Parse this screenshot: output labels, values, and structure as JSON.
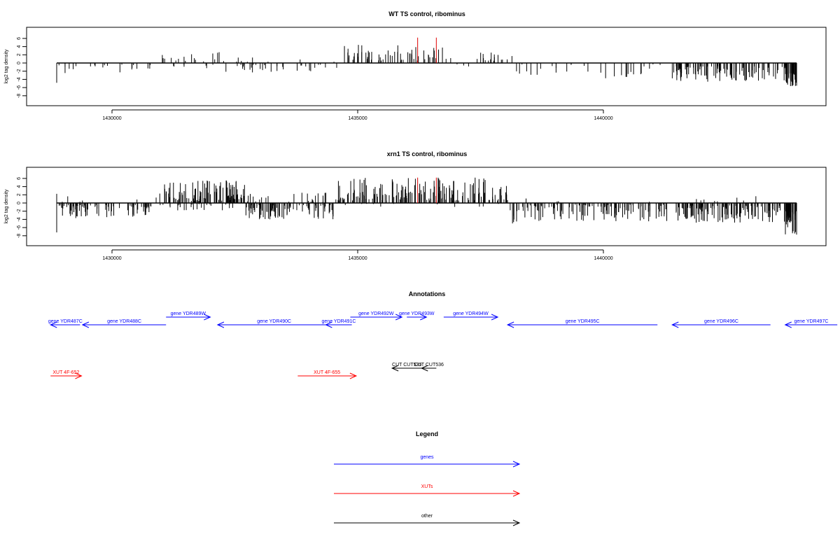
{
  "colors": {
    "axis": "#000000",
    "signal": "#000000",
    "highlight": "#e00000",
    "genes": "#0000ff",
    "xuts": "#ff0000",
    "other": "#000000"
  },
  "chart_data": [
    {
      "type": "bar",
      "title": "WT TS control, ribominus",
      "ylabel": "log2 tag density",
      "xlim": [
        1428100,
        1444500
      ],
      "ylim": [
        -8.3,
        6.7
      ],
      "xticks": [
        1430000,
        1435000,
        1440000
      ],
      "xtick_labels": [
        "1430000",
        "1435000",
        "1440000"
      ],
      "yticks": [
        6,
        4,
        2,
        0,
        -2,
        -4,
        -6,
        -8
      ],
      "ytick_labels": [
        "6",
        "4",
        "2",
        "0",
        "-2",
        "-4",
        "-6",
        "-8"
      ],
      "highlight_positions": [
        1436220,
        1436600
      ],
      "highlight_height": 6.2,
      "regions": [
        {
          "start": 1428750,
          "end": 1428850,
          "side": "neg",
          "min": 1.0,
          "max": 6.0,
          "n": 5,
          "seed": 11
        },
        {
          "start": 1428900,
          "end": 1429500,
          "side": "neg",
          "min": 0.5,
          "max": 2.6,
          "n": 6,
          "seed": 12
        },
        {
          "start": 1429500,
          "end": 1430800,
          "side": "neg",
          "min": 0.4,
          "max": 2.8,
          "n": 16,
          "seed": 13
        },
        {
          "start": 1431000,
          "end": 1431100,
          "side": "pos",
          "min": 1.0,
          "max": 3.5,
          "n": 3,
          "seed": 14
        },
        {
          "start": 1431200,
          "end": 1432300,
          "side": "pos",
          "min": 0.4,
          "max": 2.7,
          "n": 14,
          "seed": 15
        },
        {
          "start": 1431200,
          "end": 1432300,
          "side": "neg",
          "min": 0.3,
          "max": 1.3,
          "n": 8,
          "seed": 16
        },
        {
          "start": 1432300,
          "end": 1434600,
          "side": "neg",
          "min": 0.4,
          "max": 3.0,
          "n": 34,
          "seed": 17
        },
        {
          "start": 1432300,
          "end": 1434600,
          "side": "pos",
          "min": 0.3,
          "max": 1.5,
          "n": 8,
          "seed": 18
        },
        {
          "start": 1434700,
          "end": 1436900,
          "side": "pos",
          "min": 0.6,
          "max": 4.5,
          "n": 60,
          "seed": 19
        },
        {
          "start": 1436900,
          "end": 1437400,
          "side": "neg",
          "min": 0.3,
          "max": 1.6,
          "n": 3,
          "seed": 20
        },
        {
          "start": 1437400,
          "end": 1438200,
          "side": "pos",
          "min": 0.5,
          "max": 3.0,
          "n": 16,
          "seed": 21
        },
        {
          "start": 1438200,
          "end": 1441300,
          "side": "neg",
          "min": 0.3,
          "max": 3.8,
          "n": 30,
          "seed": 22
        },
        {
          "start": 1441400,
          "end": 1443700,
          "side": "neg",
          "min": 0.8,
          "max": 4.6,
          "n": 110,
          "seed": 23
        },
        {
          "start": 1443700,
          "end": 1443990,
          "side": "neg",
          "min": 2.5,
          "max": 5.8,
          "n": 40,
          "seed": 24
        }
      ]
    },
    {
      "type": "bar",
      "title": "xrn1 TS control, ribominus",
      "ylabel": "log2 tag density",
      "xlim": [
        1428100,
        1444500
      ],
      "ylim": [
        -8.3,
        6.7
      ],
      "xticks": [
        1430000,
        1435000,
        1440000
      ],
      "xtick_labels": [
        "1430000",
        "1435000",
        "1440000"
      ],
      "yticks": [
        6,
        4,
        2,
        0,
        -2,
        -4,
        -6,
        -8
      ],
      "ytick_labels": [
        "6",
        "4",
        "2",
        "0",
        "-2",
        "-4",
        "-6",
        "-8"
      ],
      "highlight_positions": [
        1436220,
        1436600
      ],
      "highlight_height": 6.2,
      "regions": [
        {
          "start": 1428750,
          "end": 1428850,
          "side": "neg",
          "min": 1.5,
          "max": 7.5,
          "n": 6,
          "seed": 31
        },
        {
          "start": 1428750,
          "end": 1428900,
          "side": "pos",
          "min": 1.0,
          "max": 2.6,
          "n": 3,
          "seed": 32
        },
        {
          "start": 1428900,
          "end": 1430900,
          "side": "neg",
          "min": 0.5,
          "max": 3.7,
          "n": 80,
          "seed": 33
        },
        {
          "start": 1428900,
          "end": 1430900,
          "side": "pos",
          "min": 0.3,
          "max": 1.8,
          "n": 6,
          "seed": 34
        },
        {
          "start": 1430950,
          "end": 1432700,
          "side": "pos",
          "min": 0.5,
          "max": 5.8,
          "n": 110,
          "seed": 35
        },
        {
          "start": 1430950,
          "end": 1432700,
          "side": "neg",
          "min": 0.3,
          "max": 2.2,
          "n": 25,
          "seed": 36
        },
        {
          "start": 1432700,
          "end": 1434600,
          "side": "neg",
          "min": 0.5,
          "max": 4.0,
          "n": 90,
          "seed": 37
        },
        {
          "start": 1432700,
          "end": 1434600,
          "side": "pos",
          "min": 0.3,
          "max": 2.6,
          "n": 25,
          "seed": 38
        },
        {
          "start": 1434600,
          "end": 1438050,
          "side": "pos",
          "min": 0.6,
          "max": 6.2,
          "n": 170,
          "seed": 39
        },
        {
          "start": 1434600,
          "end": 1438050,
          "side": "neg",
          "min": 0.2,
          "max": 1.0,
          "n": 12,
          "seed": 40
        },
        {
          "start": 1438100,
          "end": 1438300,
          "side": "neg",
          "min": 1.5,
          "max": 5.0,
          "n": 8,
          "seed": 41
        },
        {
          "start": 1438300,
          "end": 1441300,
          "side": "neg",
          "min": 0.4,
          "max": 4.5,
          "n": 120,
          "seed": 42
        },
        {
          "start": 1438300,
          "end": 1441300,
          "side": "pos",
          "min": 0.3,
          "max": 1.5,
          "n": 4,
          "seed": 43
        },
        {
          "start": 1441400,
          "end": 1443700,
          "side": "neg",
          "min": 0.6,
          "max": 4.8,
          "n": 130,
          "seed": 44
        },
        {
          "start": 1441400,
          "end": 1443700,
          "side": "pos",
          "min": 0.3,
          "max": 2.0,
          "n": 8,
          "seed": 45
        },
        {
          "start": 1443700,
          "end": 1443990,
          "side": "neg",
          "min": 2.0,
          "max": 7.8,
          "n": 50,
          "seed": 46
        }
      ]
    }
  ],
  "annotations": {
    "title": "Annotations",
    "genes": [
      {
        "label": "gene YDR487C",
        "start": 1428750,
        "end": 1429350,
        "strand": "-",
        "row": 1
      },
      {
        "label": "gene YDR488C",
        "start": 1429400,
        "end": 1431100,
        "strand": "-",
        "row": 1
      },
      {
        "label": "gene YDR489W",
        "start": 1431100,
        "end": 1432000,
        "strand": "+",
        "row": 0
      },
      {
        "label": "gene YDR490C",
        "start": 1432150,
        "end": 1434450,
        "strand": "-",
        "row": 1
      },
      {
        "label": "gene YDR491C",
        "start": 1434350,
        "end": 1434880,
        "strand": "-",
        "row": 1
      },
      {
        "label": "gene YDR492W",
        "start": 1434850,
        "end": 1435900,
        "strand": "+",
        "row": 0
      },
      {
        "label": "gene YDR493W",
        "start": 1436000,
        "end": 1436400,
        "strand": "+",
        "row": 0
      },
      {
        "label": "gene YDR494W",
        "start": 1436750,
        "end": 1437850,
        "strand": "+",
        "row": 0
      },
      {
        "label": "gene YDR495C",
        "start": 1438050,
        "end": 1441100,
        "strand": "-",
        "row": 1
      },
      {
        "label": "gene YDR496C",
        "start": 1441400,
        "end": 1443400,
        "strand": "-",
        "row": 1
      },
      {
        "label": "gene YDR497C",
        "start": 1443700,
        "end": 1444760,
        "strand": "-",
        "row": 1
      }
    ],
    "xuts": [
      {
        "label": "XUT 4F-652",
        "start": 1428750,
        "end": 1429380,
        "strand": "+"
      },
      {
        "label": "XUT 4F-655",
        "start": 1433780,
        "end": 1434970,
        "strand": "+"
      }
    ],
    "other": [
      {
        "label": "CUT CUT535",
        "start": 1435700,
        "end": 1436300,
        "strand": "-"
      },
      {
        "label": "CUT CUT536",
        "start": 1436300,
        "end": 1436600,
        "strand": "-"
      }
    ]
  },
  "legend": {
    "title": "Legend",
    "items": [
      {
        "label": "genes",
        "color_key": "genes"
      },
      {
        "label": "XUTs",
        "color_key": "xuts"
      },
      {
        "label": "other",
        "color_key": "other"
      }
    ]
  }
}
